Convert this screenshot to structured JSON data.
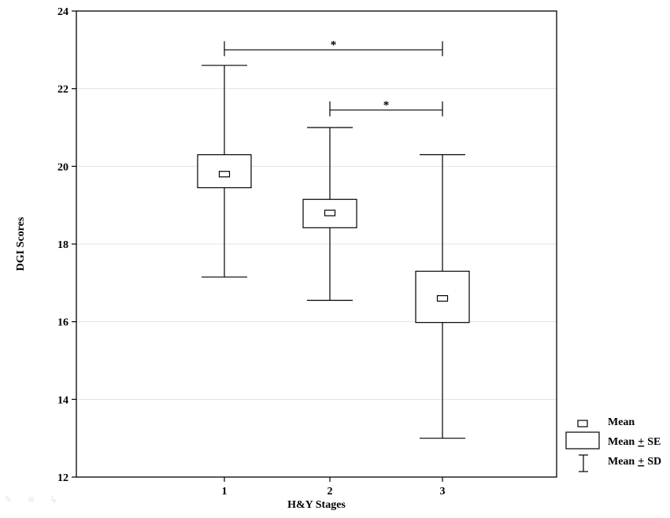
{
  "chart_data": {
    "type": "box",
    "xlabel": "H&Y Stages",
    "ylabel": "DGI Scores",
    "ylim": [
      12,
      24
    ],
    "yticks": [
      "12",
      "14",
      "16",
      "18",
      "20",
      "22",
      "24"
    ],
    "categories": [
      "1",
      "2",
      "3"
    ],
    "mean": [
      19.8,
      18.8,
      16.6
    ],
    "se_range": [
      [
        19.45,
        20.3
      ],
      [
        18.42,
        19.15
      ],
      [
        15.98,
        17.3
      ]
    ],
    "sd_range": [
      [
        17.15,
        22.6
      ],
      [
        16.55,
        21.0
      ],
      [
        13.0,
        20.3
      ]
    ],
    "grid": true,
    "legend_position": "bottom-right",
    "legend": {
      "mean": "Mean",
      "se": "Mean",
      "se_suffix": "SE",
      "sd": "Mean",
      "sd_suffix": "SD",
      "pm": "+"
    },
    "significance": [
      {
        "from": "1",
        "to": "3",
        "y": 23.0,
        "label": "*"
      },
      {
        "from": "2",
        "to": "3",
        "y": 21.45,
        "label": "*"
      }
    ]
  }
}
